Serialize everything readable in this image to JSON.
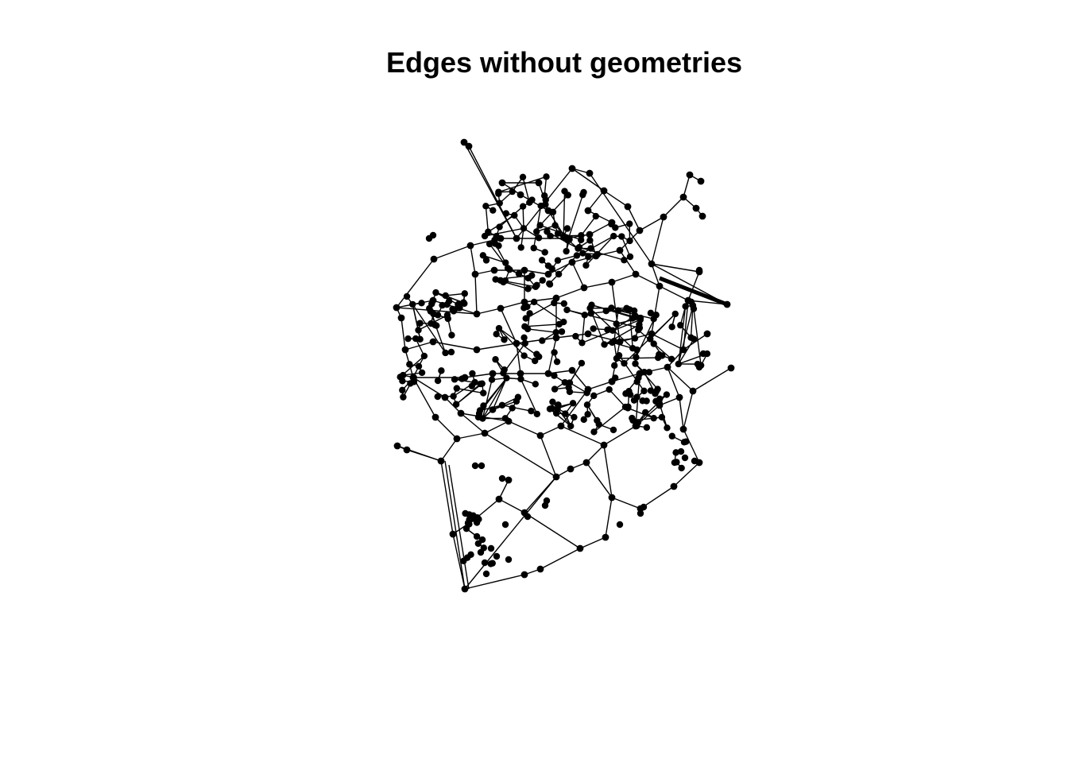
{
  "title": "Edges without geometries",
  "colors": {
    "background": "#ffffff",
    "ink": "#000000"
  }
}
